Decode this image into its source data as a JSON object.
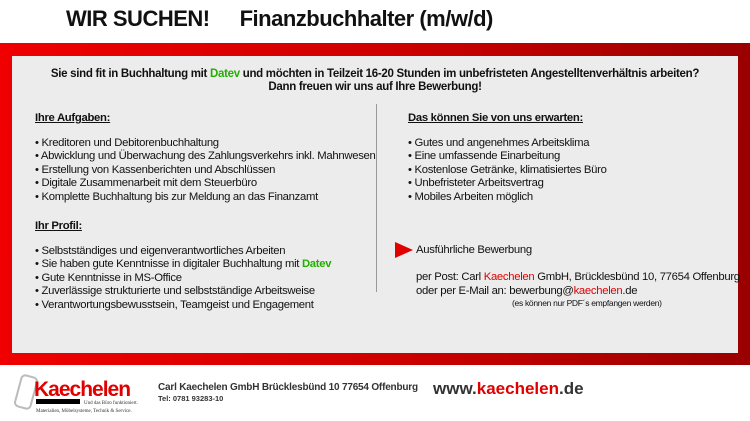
{
  "header": {
    "title1": "WIR SUCHEN!",
    "title2": "Finanzbuchhalter (m/w/d)"
  },
  "intro": {
    "l1a": "Sie sind fit in Buchhaltung mit ",
    "l1b": "Datev",
    "l1c": " und möchten in Teilzeit 16-20 Stunden im unbefristeten Angestelltenverhältnis arbeiten?",
    "l2": "Dann freuen wir uns auf Ihre Bewerbung!"
  },
  "tasks": {
    "heading": "Ihre Aufgaben:",
    "items": [
      "• Kreditoren und Debitorenbuchhaltung",
      "• Abwicklung und Überwachung des Zahlungsverkehrs inkl. Mahnwesen",
      "• Erstellung von Kassenberichten und Abschlüssen",
      "• Digitale Zusammenarbeit mit dem Steuerbüro",
      "• Komplette Buchhaltung bis zur Meldung an das Finanzamt"
    ]
  },
  "profile": {
    "heading": "Ihr Profil:",
    "items": [
      "• Selbstständiges und eigenverantwortliches Arbeiten",
      "• Sie haben gute Kenntnisse in digitaler Buchhaltung mit ",
      "• Gute Kenntnisse in MS-Office",
      "• Zuverlässige strukturierte und selbstständige Arbeitsweise",
      "• Verantwortungsbewusstsein, Teamgeist und Engagement"
    ],
    "datev": "Datev"
  },
  "offer": {
    "heading": "Das können Sie von uns erwarten:",
    "items": [
      "• Gutes und angenehmes Arbeitsklima",
      "• Eine umfassende Einarbeitung",
      "• Kostenlose Getränke, klimatisiertes Büro",
      "• Unbefristeter Arbeitsvertrag",
      "• Mobiles Arbeiten möglich"
    ]
  },
  "apply": {
    "heading": "Ausführliche Bewerbung",
    "post_a": "per Post: Carl ",
    "post_b": "Kaechelen",
    "post_c": " GmbH, Brücklesbünd 10, 77654 Offenburg",
    "mail_a": "oder per E-Mail an: bewerbung@",
    "mail_b": "kaechelen",
    "mail_c": ".de",
    "note": "(es können nur PDF´s empfangen werden)"
  },
  "footer": {
    "logo_text": "Kaechelen",
    "logo_tagline": "Und das Büro funktioniert.",
    "logo_sub": "Materialien, Möbelsysteme, Technik & Service.",
    "company": "Carl Kaechelen GmbH Brücklesbünd 10 77654 Offenburg",
    "tel": "Tel: 0781 93283-10",
    "url_a": "www.",
    "url_b": "kaechelen",
    "url_c": ".de"
  },
  "colors": {
    "red": "#e00000",
    "green": "#22b000",
    "panel": "#ececec"
  }
}
